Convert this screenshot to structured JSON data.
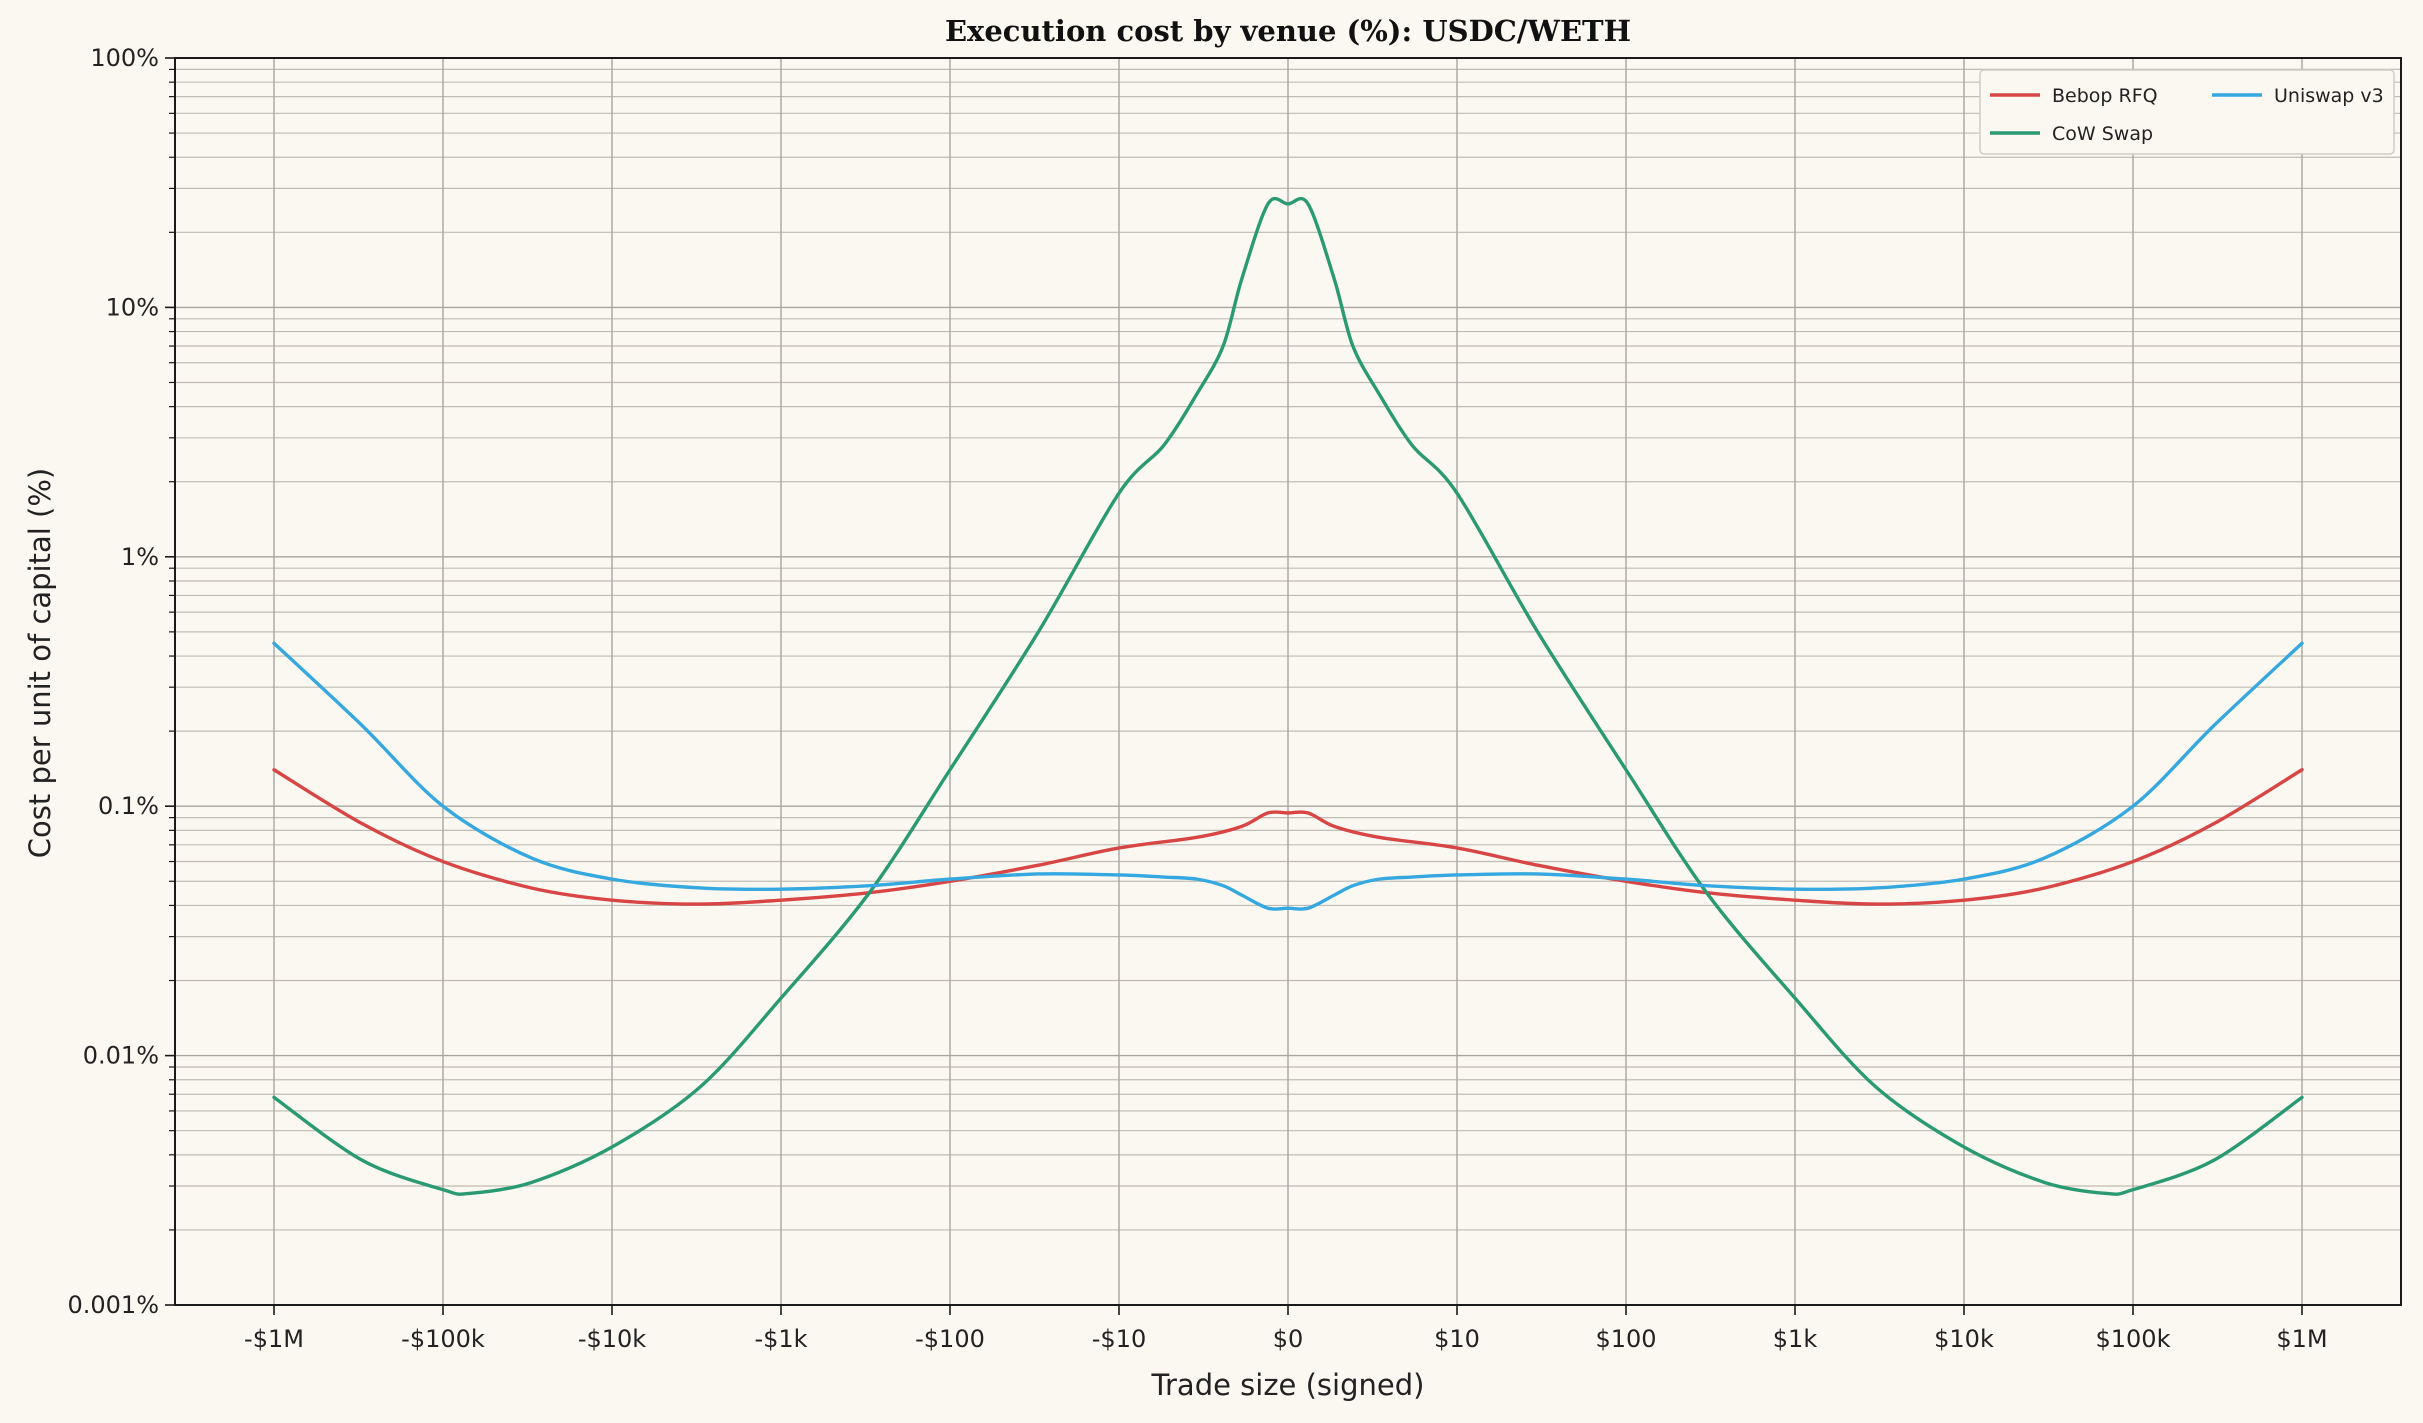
{
  "chart_data": {
    "type": "line",
    "title": "Execution cost by venue (%): USDC/WETH",
    "xlabel": "Trade size (signed)",
    "ylabel": "Cost per unit of capital (%)",
    "xscale": "symlog (signed trade size in $)",
    "yscale": "log",
    "ylim_percent": [
      0.001,
      100
    ],
    "y_ticks": [
      {
        "value": 0.001,
        "label": "0.001%"
      },
      {
        "value": 0.01,
        "label": "0.01%"
      },
      {
        "value": 0.1,
        "label": "0.1%"
      },
      {
        "value": 1,
        "label": "1%"
      },
      {
        "value": 10,
        "label": "10%"
      },
      {
        "value": 100,
        "label": "100%"
      }
    ],
    "x_ticks": [
      {
        "value": -1000000,
        "label": "-$1M"
      },
      {
        "value": -100000,
        "label": "-$100k"
      },
      {
        "value": -10000,
        "label": "-$10k"
      },
      {
        "value": -1000,
        "label": "-$1k"
      },
      {
        "value": -100,
        "label": "-$100"
      },
      {
        "value": -10,
        "label": "-$10"
      },
      {
        "value": 0,
        "label": "$0"
      },
      {
        "value": 10,
        "label": "$10"
      },
      {
        "value": 100,
        "label": "$100"
      },
      {
        "value": 1000,
        "label": "$1k"
      },
      {
        "value": 10000,
        "label": "$10k"
      },
      {
        "value": 100000,
        "label": "$100k"
      },
      {
        "value": 1000000,
        "label": "$1M"
      }
    ],
    "grid": true,
    "legend_position": "top-right",
    "series": [
      {
        "name": "Bebop RFQ",
        "color": "#d84545",
        "points": [
          [
            -1000000.0,
            0.14
          ],
          [
            -300000.0,
            0.085
          ],
          [
            -100000.0,
            0.06
          ],
          [
            -30000.0,
            0.047
          ],
          [
            -10000.0,
            0.042
          ],
          [
            -3000.0,
            0.0405
          ],
          [
            -1000.0,
            0.042
          ],
          [
            -300,
            0.045
          ],
          [
            -100,
            0.05
          ],
          [
            -30,
            0.058
          ],
          [
            -10,
            0.068
          ],
          [
            -3,
            0.075
          ],
          [
            -1.5,
            0.083
          ],
          [
            -1,
            0.094
          ],
          [
            0,
            0.094
          ],
          [
            1,
            0.094
          ],
          [
            1.5,
            0.083
          ],
          [
            3,
            0.075
          ],
          [
            10,
            0.068
          ],
          [
            30,
            0.058
          ],
          [
            100,
            0.05
          ],
          [
            300,
            0.045
          ],
          [
            1000.0,
            0.042
          ],
          [
            3000.0,
            0.0405
          ],
          [
            10000.0,
            0.042
          ],
          [
            30000.0,
            0.047
          ],
          [
            100000.0,
            0.06
          ],
          [
            300000.0,
            0.085
          ],
          [
            1000000.0,
            0.14
          ]
        ]
      },
      {
        "name": "CoW Swap",
        "color": "#2a9a72",
        "points": [
          [
            -1000000.0,
            0.0068
          ],
          [
            -300000.0,
            0.0038
          ],
          [
            -100000.0,
            0.0029
          ],
          [
            -70000.0,
            0.0028
          ],
          [
            -30000.0,
            0.0031
          ],
          [
            -10000.0,
            0.0043
          ],
          [
            -3000.0,
            0.0075
          ],
          [
            -1000.0,
            0.017
          ],
          [
            -300,
            0.045
          ],
          [
            -100,
            0.14
          ],
          [
            -30,
            0.5
          ],
          [
            -10,
            1.8
          ],
          [
            -5,
            2.8
          ],
          [
            -3,
            4.5
          ],
          [
            -2,
            7
          ],
          [
            -1.5,
            13
          ],
          [
            -1,
            26
          ],
          [
            0,
            26
          ],
          [
            1,
            26
          ],
          [
            1.5,
            13
          ],
          [
            2,
            7
          ],
          [
            3,
            4.5
          ],
          [
            5,
            2.8
          ],
          [
            10,
            1.8
          ],
          [
            30,
            0.5
          ],
          [
            100,
            0.14
          ],
          [
            300,
            0.045
          ],
          [
            1000.0,
            0.017
          ],
          [
            3000.0,
            0.0075
          ],
          [
            10000.0,
            0.0043
          ],
          [
            30000.0,
            0.0031
          ],
          [
            70000.0,
            0.0028
          ],
          [
            100000.0,
            0.0029
          ],
          [
            300000.0,
            0.0038
          ],
          [
            1000000.0,
            0.0068
          ]
        ]
      },
      {
        "name": "Uniswap v3",
        "color": "#35a8df",
        "points": [
          [
            -1000000.0,
            0.45
          ],
          [
            -300000.0,
            0.21
          ],
          [
            -100000.0,
            0.1
          ],
          [
            -30000.0,
            0.062
          ],
          [
            -10000.0,
            0.051
          ],
          [
            -3000.0,
            0.047
          ],
          [
            -1000.0,
            0.0465
          ],
          [
            -300,
            0.048
          ],
          [
            -100,
            0.051
          ],
          [
            -30,
            0.0535
          ],
          [
            -10,
            0.053
          ],
          [
            -5,
            0.052
          ],
          [
            -3,
            0.051
          ],
          [
            -2,
            0.048
          ],
          [
            -1.5,
            0.044
          ],
          [
            -1,
            0.039
          ],
          [
            0,
            0.039
          ],
          [
            1,
            0.039
          ],
          [
            1.5,
            0.044
          ],
          [
            2,
            0.048
          ],
          [
            3,
            0.051
          ],
          [
            5,
            0.052
          ],
          [
            10,
            0.053
          ],
          [
            30,
            0.0535
          ],
          [
            100,
            0.051
          ],
          [
            300,
            0.048
          ],
          [
            1000.0,
            0.0465
          ],
          [
            3000.0,
            0.047
          ],
          [
            10000.0,
            0.051
          ],
          [
            30000.0,
            0.062
          ],
          [
            100000.0,
            0.1
          ],
          [
            300000.0,
            0.21
          ],
          [
            1000000.0,
            0.45
          ]
        ]
      }
    ]
  }
}
